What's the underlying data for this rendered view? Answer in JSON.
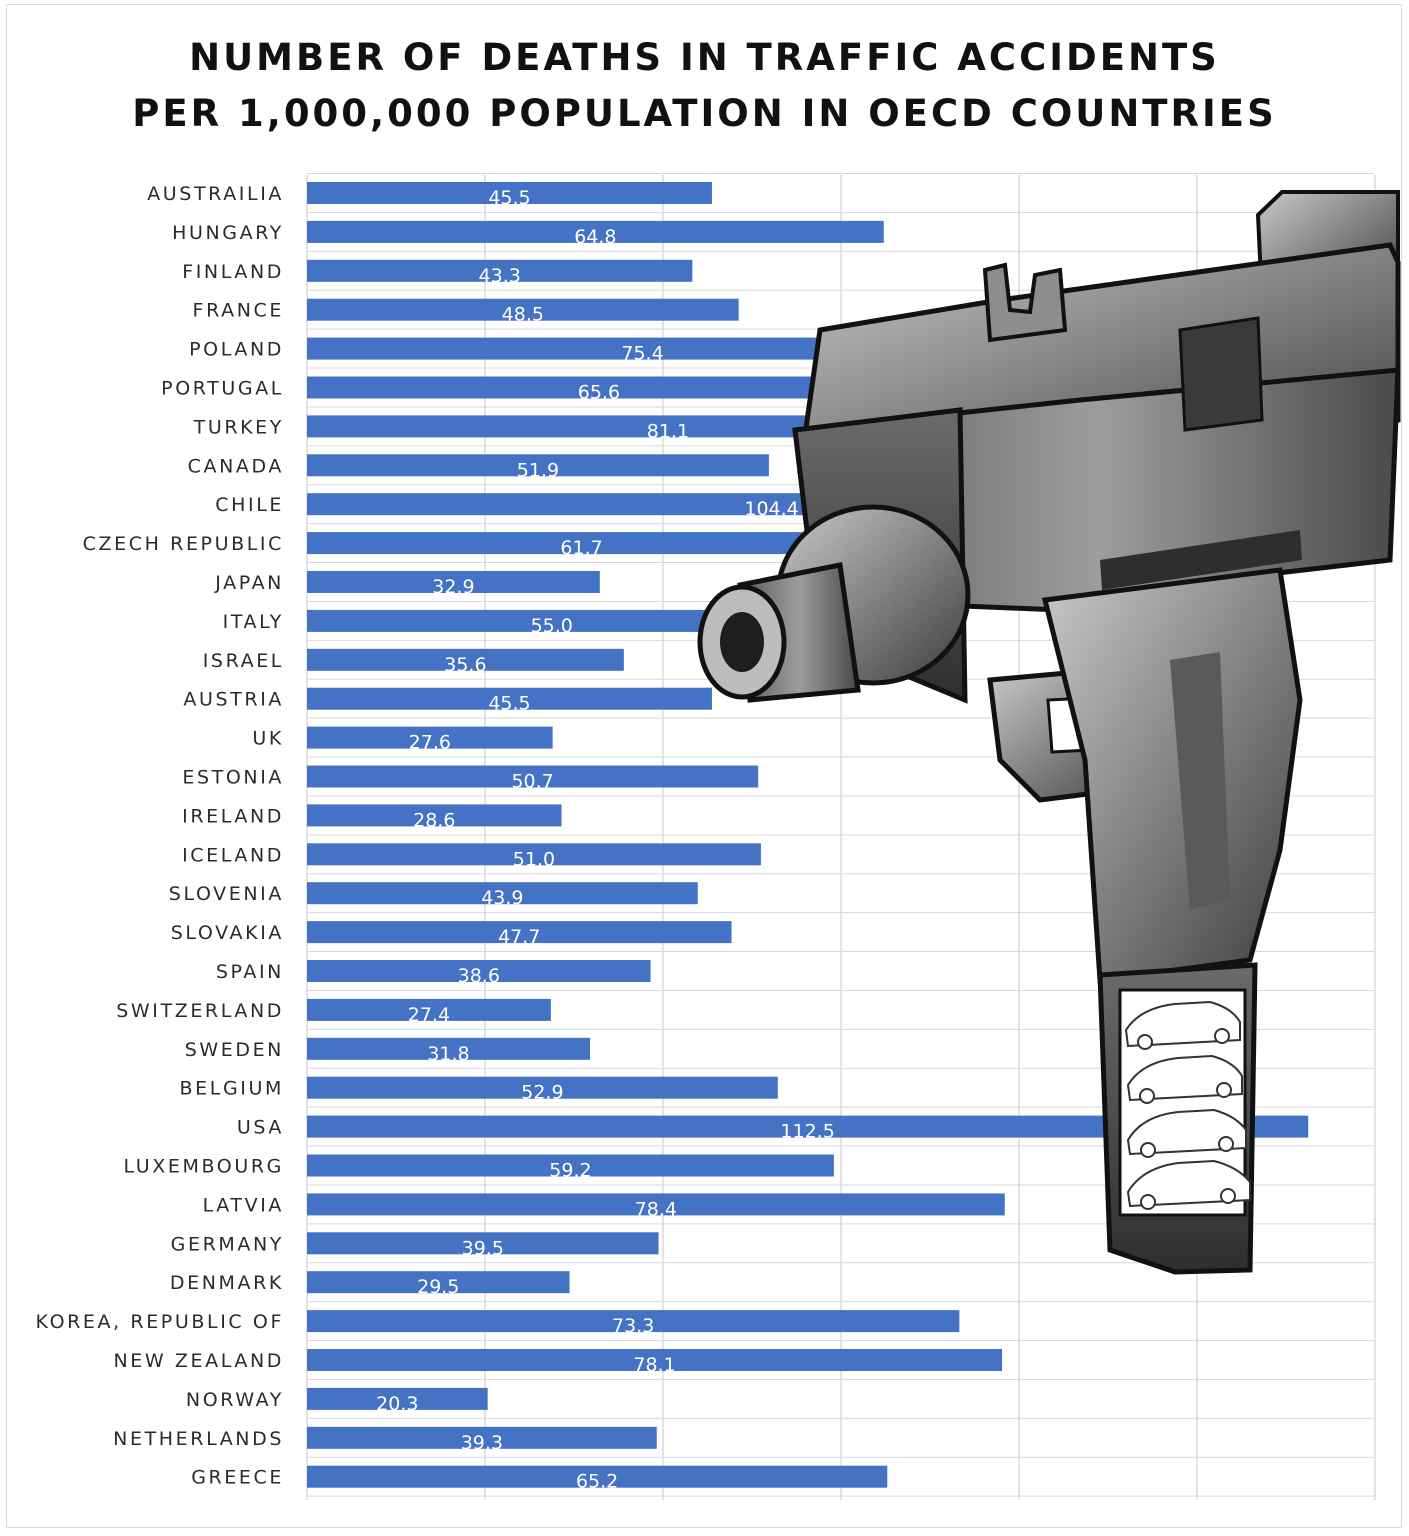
{
  "chart_data": {
    "type": "bar",
    "orientation": "horizontal",
    "title_lines": [
      "NUMBER OF DEATHS IN TRAFFIC ACCIDENTS",
      "PER 1,000,000 POPULATION IN OECD COUNTRIES"
    ],
    "categories": [
      "AUSTRAILIA",
      "HUNGARY",
      "FINLAND",
      "FRANCE",
      "POLAND",
      "PORTUGAL",
      "TURKEY",
      "CANADA",
      "CHILE",
      "CZECH REPUBLIC",
      "JAPAN",
      "ITALY",
      "ISRAEL",
      "AUSTRIA",
      "UK",
      "ESTONIA",
      "IRELAND",
      "ICELAND",
      "SLOVENIA",
      "SLOVAKIA",
      "SPAIN",
      "SWITZERLAND",
      "SWEDEN",
      "BELGIUM",
      "USA",
      "LUXEMBOURG",
      "LATVIA",
      "GERMANY",
      "DENMARK",
      "KOREA, REPUBLIC OF",
      "NEW ZEALAND",
      "NORWAY",
      "NETHERLANDS",
      "GREECE"
    ],
    "values": [
      45.5,
      64.8,
      43.3,
      48.5,
      75.4,
      65.6,
      81.1,
      51.9,
      104.4,
      61.7,
      32.9,
      55.0,
      35.6,
      45.5,
      27.6,
      50.7,
      28.6,
      51.0,
      43.9,
      47.7,
      38.6,
      27.4,
      31.8,
      52.9,
      112.5,
      59.2,
      78.4,
      39.5,
      29.5,
      73.3,
      78.1,
      20.3,
      39.3,
      65.2
    ],
    "value_labels": [
      "45.5",
      "64.8",
      "43.3",
      "48.5",
      "75.4",
      "65.6",
      "81.1",
      "51.9",
      "104.4",
      "61.7",
      "32.9",
      "55.0",
      "35.6",
      "45.5",
      "27.6",
      "50.7",
      "28.6",
      "51.0",
      "43.9",
      "47.7",
      "38.6",
      "27.4",
      "31.8",
      "52.9",
      "112.5",
      "59.2",
      "78.4",
      "39.5",
      "29.5",
      "73.3",
      "78.1",
      "20.3",
      "39.3",
      "65.2"
    ],
    "xlim": [
      0,
      120
    ],
    "grid": true,
    "bar_color": "#4472c4",
    "overlay_illustration": "submachine-gun-with-cars-in-magazine"
  }
}
